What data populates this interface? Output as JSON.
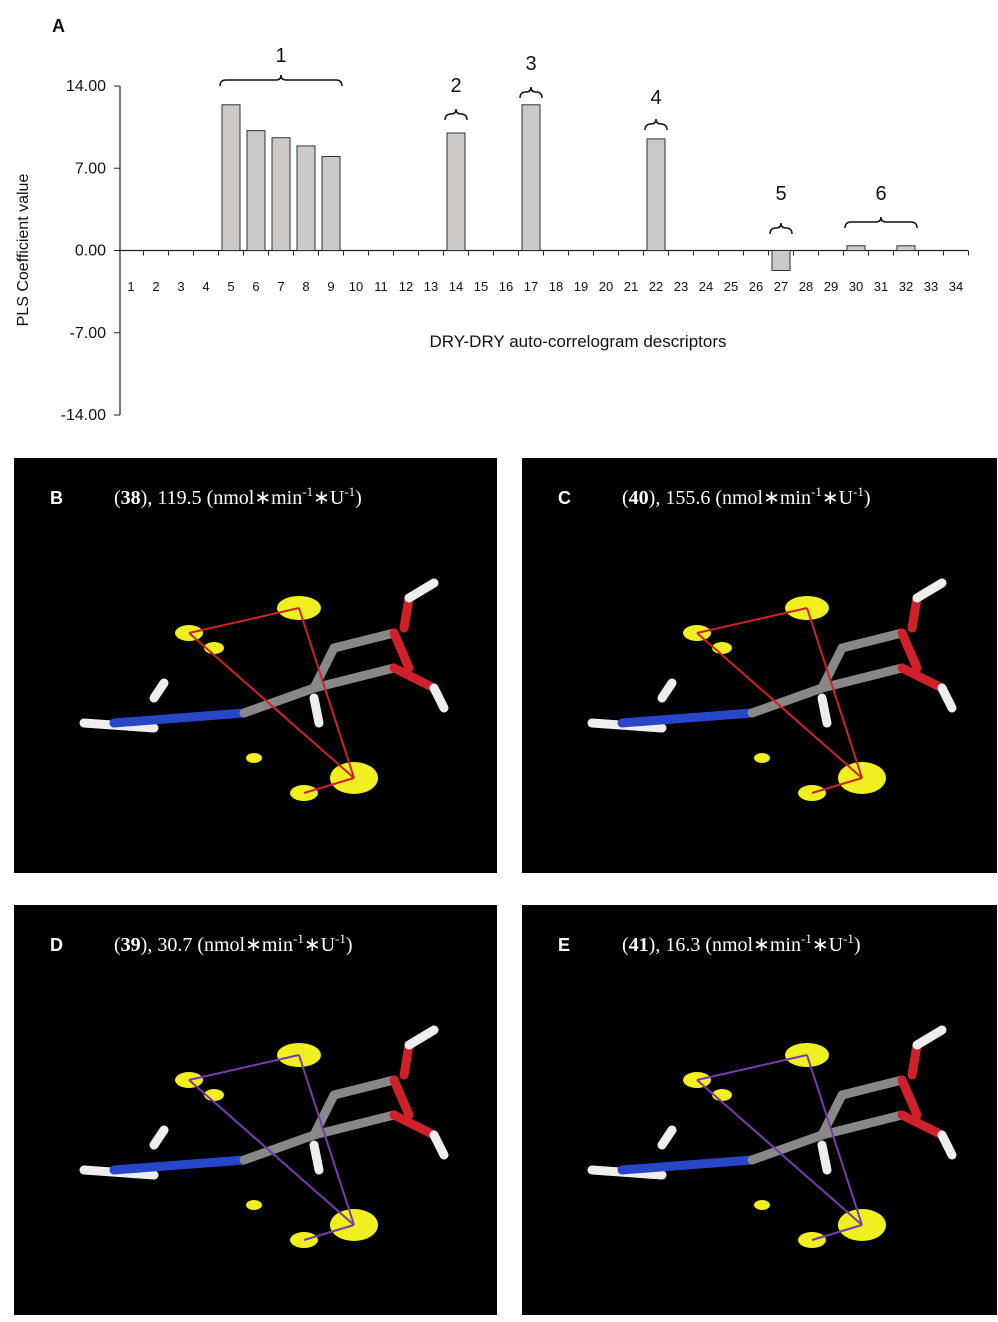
{
  "panel_label": "A",
  "chart_data": {
    "type": "bar",
    "ylabel": "PLS Coefficient value",
    "xlabel": "DRY-DRY auto-correlogram descriptors",
    "categories": [
      "1",
      "2",
      "3",
      "4",
      "5",
      "6",
      "7",
      "8",
      "9",
      "10",
      "11",
      "12",
      "13",
      "14",
      "15",
      "16",
      "17",
      "18",
      "19",
      "20",
      "21",
      "22",
      "23",
      "24",
      "25",
      "26",
      "27",
      "28",
      "29",
      "30",
      "31",
      "32",
      "33",
      "34"
    ],
    "values": [
      0,
      0,
      0,
      0,
      12.4,
      10.2,
      9.6,
      8.9,
      8.0,
      0,
      0,
      0,
      0,
      10.0,
      0,
      0,
      12.4,
      0,
      0,
      0,
      0,
      9.5,
      0,
      0,
      0,
      0,
      -1.7,
      0,
      0,
      0.4,
      0,
      0.4,
      0,
      0
    ],
    "color": "#cdc9c6",
    "ylim": [
      -14,
      14
    ],
    "yticks": [
      {
        "value": -14,
        "label": "-14.00"
      },
      {
        "value": -7,
        "label": "-7.00"
      },
      {
        "value": 0,
        "label": "0.00"
      },
      {
        "value": 7,
        "label": "7.00"
      },
      {
        "value": 14,
        "label": "14.00"
      }
    ],
    "grid": false,
    "annotations": [
      "1",
      "2",
      "3",
      "4",
      "5",
      "6"
    ]
  },
  "panels": [
    {
      "letter": "B",
      "caption": [
        "(",
        "38",
        "), 119.5 (nmol∗min",
        "-1",
        "∗U",
        "-1",
        ")"
      ]
    },
    {
      "letter": "C",
      "caption": [
        "(",
        "40",
        "), 155.6 (nmol∗min",
        "-1",
        "∗U",
        "-1",
        ")"
      ]
    },
    {
      "letter": "D",
      "caption": [
        "(",
        "39",
        "), 30.7 (nmol∗min",
        "-1",
        "∗U",
        "-1",
        ")"
      ]
    },
    {
      "letter": "E",
      "caption": [
        "(",
        "41",
        "), 16.3 (nmol∗min",
        "-1",
        "∗U",
        "-1",
        ")"
      ]
    }
  ]
}
